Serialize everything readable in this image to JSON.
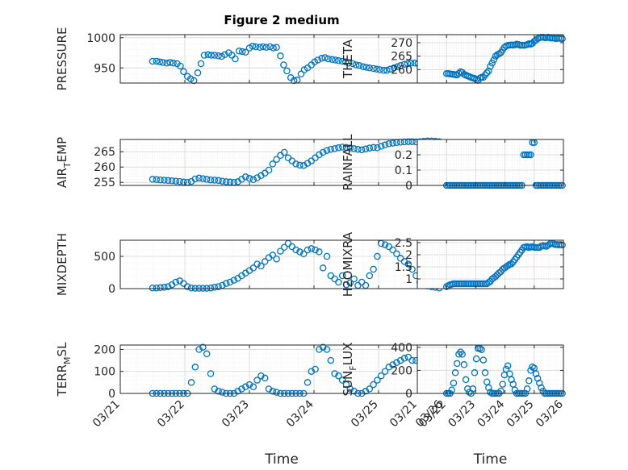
{
  "title": "Figure 2 medium",
  "colors": {
    "marker": "#0072BD",
    "axis": "#262626",
    "grid": "#dcdcdc",
    "minor_grid": "#ebebeb",
    "background": "#ffffff"
  },
  "xaxis": {
    "label": "Time",
    "ticks": [
      0,
      1,
      2,
      3,
      4,
      5
    ],
    "tick_labels": [
      "03/21",
      "03/22",
      "03/23",
      "03/24",
      "03/25",
      "03/26"
    ]
  },
  "chart_data": [
    {
      "type": "scatter",
      "ylabel": "PRESSURE",
      "xlim": [
        0,
        5
      ],
      "ylim": [
        925,
        1005
      ],
      "yticks": [
        950,
        1000
      ],
      "ytick_labels": [
        "950",
        "1000"
      ],
      "title": "Figure 2 medium",
      "x": [
        0.5,
        0.56,
        0.61,
        0.66,
        0.72,
        0.77,
        0.82,
        0.88,
        0.93,
        0.98,
        1.04,
        1.09,
        1.14,
        1.2,
        1.25,
        1.3,
        1.36,
        1.41,
        1.46,
        1.52,
        1.57,
        1.62,
        1.68,
        1.73,
        1.78,
        1.84,
        1.89,
        1.94,
        2.0,
        2.05,
        2.1,
        2.16,
        2.21,
        2.26,
        2.32,
        2.37,
        2.42,
        2.48,
        2.53,
        2.58,
        2.64,
        2.69,
        2.74,
        2.8,
        2.85,
        2.9,
        2.96,
        3.01,
        3.06,
        3.12,
        3.17,
        3.22,
        3.28,
        3.33,
        3.38,
        3.44,
        3.49,
        3.54,
        3.6,
        3.65,
        3.7,
        3.76,
        3.81,
        3.86,
        3.92,
        3.97,
        4.02,
        4.08,
        4.13,
        4.18,
        4.24,
        4.29,
        4.34,
        4.4,
        4.45,
        4.5,
        4.56,
        4.61,
        4.66,
        4.72,
        4.77,
        4.82,
        4.88,
        4.93,
        4.98
      ],
      "y": [
        961,
        961,
        960,
        959,
        958,
        959,
        958,
        957,
        953,
        944,
        936,
        932,
        929,
        942,
        957,
        971,
        972,
        971,
        971,
        970,
        969,
        972,
        975,
        971,
        965,
        978,
        977,
        976,
        983,
        986,
        985,
        984,
        985,
        984,
        985,
        983,
        984,
        970,
        955,
        945,
        934,
        929,
        930,
        940,
        947,
        950,
        955,
        960,
        963,
        966,
        967,
        965,
        964,
        963,
        962,
        961,
        960,
        958,
        957,
        955,
        954,
        952,
        951,
        950,
        949,
        948,
        947,
        946,
        946,
        948,
        950,
        952,
        954,
        956,
        957,
        958,
        958,
        957,
        957,
        958,
        958,
        959,
        959,
        958,
        958
      ]
    },
    {
      "type": "scatter",
      "ylabel": "THETA",
      "xlim": [
        0,
        5
      ],
      "ylim": [
        255,
        273
      ],
      "yticks": [
        260,
        265,
        270
      ],
      "ytick_labels": [
        "260",
        "265",
        "270"
      ],
      "x": [
        1.0,
        1.06,
        1.12,
        1.18,
        1.24,
        1.3,
        1.36,
        1.42,
        1.48,
        1.54,
        1.6,
        1.66,
        1.72,
        1.78,
        1.84,
        1.9,
        1.96,
        2.02,
        2.08,
        2.14,
        2.2,
        2.26,
        2.32,
        2.38,
        2.44,
        2.5,
        2.56,
        2.62,
        2.68,
        2.74,
        2.8,
        2.86,
        2.92,
        2.98,
        3.04,
        3.1,
        3.16,
        3.22,
        3.28,
        3.34,
        3.4,
        3.46,
        3.52,
        3.58,
        3.64,
        3.7,
        3.76,
        3.82,
        3.88,
        3.94,
        4.0,
        4.06,
        4.12,
        4.18,
        4.24,
        4.3,
        4.36,
        4.42,
        4.48,
        4.54,
        4.6,
        4.66,
        4.72,
        4.78,
        4.84,
        4.9,
        4.96
      ],
      "y": [
        258.5,
        258.5,
        258.4,
        258.3,
        258.2,
        258.1,
        258.0,
        258.6,
        259.2,
        258.9,
        258.2,
        257.9,
        257.6,
        257.4,
        257.1,
        256.9,
        256.7,
        256.3,
        256.0,
        256.8,
        257.2,
        257.1,
        258.0,
        258.8,
        259.5,
        261.2,
        262.4,
        263.6,
        265.0,
        265.6,
        265.9,
        266.3,
        267.3,
        268.3,
        268.7,
        269.0,
        269.1,
        269.2,
        269.1,
        269.2,
        269.5,
        269.3,
        269.0,
        269.1,
        269.0,
        269.1,
        269.3,
        269.6,
        269.5,
        269.8,
        270.5,
        271.0,
        271.5,
        271.8,
        272.0,
        272.0,
        271.9,
        271.9,
        272.0,
        271.8,
        271.7,
        271.7,
        271.6,
        271.6,
        271.7,
        271.6,
        271.5
      ]
    },
    {
      "type": "scatter",
      "ylabel": "AIR_TEMP",
      "xlim": [
        0,
        5
      ],
      "ylim": [
        254,
        269
      ],
      "yticks": [
        255,
        260,
        265
      ],
      "ytick_labels": [
        "255",
        "260",
        "265"
      ],
      "x": [
        0.5,
        0.56,
        0.62,
        0.68,
        0.74,
        0.8,
        0.86,
        0.92,
        0.98,
        1.04,
        1.1,
        1.16,
        1.22,
        1.28,
        1.34,
        1.4,
        1.46,
        1.52,
        1.58,
        1.64,
        1.7,
        1.76,
        1.82,
        1.88,
        1.94,
        2.0,
        2.06,
        2.12,
        2.18,
        2.24,
        2.3,
        2.36,
        2.42,
        2.48,
        2.54,
        2.6,
        2.66,
        2.72,
        2.78,
        2.84,
        2.9,
        2.96,
        3.02,
        3.08,
        3.14,
        3.2,
        3.26,
        3.32,
        3.38,
        3.44,
        3.5,
        3.56,
        3.62,
        3.68,
        3.74,
        3.8,
        3.86,
        3.92,
        3.98,
        4.04,
        4.1,
        4.16,
        4.22,
        4.28,
        4.34,
        4.4,
        4.46,
        4.52,
        4.58,
        4.64,
        4.7,
        4.76,
        4.82,
        4.88,
        4.94
      ],
      "y": [
        256.0,
        255.9,
        255.8,
        255.7,
        255.6,
        255.5,
        255.4,
        255.3,
        255.1,
        255.0,
        255.3,
        256.1,
        256.4,
        256.2,
        256.0,
        255.8,
        255.7,
        255.6,
        255.4,
        255.2,
        255.1,
        255.0,
        255.2,
        256.0,
        256.8,
        256.3,
        255.9,
        256.5,
        257.2,
        258.0,
        259.0,
        261.0,
        262.5,
        263.8,
        264.8,
        263.0,
        262.0,
        261.0,
        260.6,
        260.5,
        261.2,
        262.0,
        263.0,
        264.0,
        264.8,
        265.4,
        265.8,
        266.0,
        266.3,
        266.5,
        266.4,
        266.2,
        266.0,
        265.8,
        265.6,
        265.9,
        266.2,
        266.4,
        266.3,
        266.8,
        267.2,
        267.6,
        267.8,
        268.0,
        268.1,
        268.2,
        268.3,
        268.3,
        268.2,
        268.3,
        268.4,
        268.5,
        268.5,
        268.4,
        268.3
      ]
    },
    {
      "type": "scatter",
      "ylabel": "RAINFALL",
      "xlim": [
        0,
        5
      ],
      "ylim": [
        0,
        0.3
      ],
      "yticks": [
        0,
        0.1,
        0.2
      ],
      "ytick_labels": [
        "0",
        "0.1",
        "0.2"
      ],
      "x": [
        1.0,
        1.06,
        1.12,
        1.18,
        1.24,
        1.3,
        1.36,
        1.42,
        1.48,
        1.54,
        1.6,
        1.66,
        1.72,
        1.78,
        1.84,
        1.9,
        1.96,
        2.02,
        2.08,
        2.14,
        2.2,
        2.26,
        2.32,
        2.38,
        2.44,
        2.5,
        2.56,
        2.62,
        2.68,
        2.74,
        2.8,
        2.86,
        2.92,
        2.98,
        3.04,
        3.1,
        3.16,
        3.22,
        3.28,
        3.34,
        3.4,
        3.46,
        3.52,
        3.58,
        3.64,
        3.7,
        3.76,
        3.82,
        3.88,
        3.94,
        4.0,
        4.06,
        4.12,
        4.18,
        4.24,
        4.3,
        4.36,
        4.42,
        4.48,
        4.54,
        4.6,
        4.66,
        4.72,
        4.78,
        4.84,
        4.9,
        4.96
      ],
      "y": [
        0,
        0,
        0,
        0,
        0,
        0,
        0,
        0,
        0,
        0,
        0,
        0,
        0,
        0,
        0,
        0,
        0,
        0,
        0,
        0,
        0,
        0,
        0,
        0,
        0,
        0,
        0,
        0,
        0,
        0,
        0,
        0,
        0,
        0,
        0,
        0,
        0,
        0,
        0,
        0,
        0,
        0,
        0,
        0,
        0.2,
        0.2,
        0.2,
        0.2,
        0.2,
        0.28,
        0.28,
        0,
        0,
        0,
        0,
        0,
        0,
        0,
        0,
        0,
        0,
        0,
        0,
        0,
        0,
        0,
        0
      ]
    },
    {
      "type": "scatter",
      "ylabel": "MIXDEPTH",
      "xlim": [
        0,
        5
      ],
      "ylim": [
        0,
        750
      ],
      "yticks": [
        0,
        500
      ],
      "ytick_labels": [
        "0",
        "500"
      ],
      "x": [
        0.5,
        0.56,
        0.62,
        0.68,
        0.74,
        0.8,
        0.86,
        0.92,
        0.98,
        1.04,
        1.1,
        1.16,
        1.22,
        1.28,
        1.34,
        1.4,
        1.46,
        1.52,
        1.58,
        1.64,
        1.7,
        1.76,
        1.82,
        1.88,
        1.94,
        2.0,
        2.06,
        2.12,
        2.18,
        2.24,
        2.3,
        2.36,
        2.42,
        2.48,
        2.54,
        2.6,
        2.66,
        2.72,
        2.78,
        2.84,
        2.9,
        2.96,
        3.02,
        3.08,
        3.14,
        3.2,
        3.26,
        3.32,
        3.38,
        3.44,
        3.5,
        3.56,
        3.62,
        3.68,
        3.74,
        3.8,
        3.86,
        3.92,
        3.98,
        4.04,
        4.1,
        4.16,
        4.22,
        4.28,
        4.34,
        4.4,
        4.46,
        4.52,
        4.58,
        4.64,
        4.7,
        4.76,
        4.82,
        4.88,
        4.94
      ],
      "y": [
        10,
        10,
        15,
        20,
        30,
        60,
        100,
        120,
        80,
        30,
        10,
        5,
        5,
        5,
        5,
        10,
        20,
        30,
        50,
        80,
        100,
        130,
        160,
        200,
        240,
        280,
        320,
        380,
        350,
        420,
        480,
        520,
        460,
        580,
        640,
        700,
        650,
        600,
        570,
        540,
        600,
        620,
        600,
        570,
        320,
        500,
        200,
        150,
        100,
        200,
        60,
        90,
        150,
        50,
        100,
        50,
        200,
        300,
        500,
        700,
        680,
        650,
        600,
        540,
        470,
        420,
        380,
        300,
        200,
        100,
        50,
        40,
        30,
        20,
        10
      ]
    },
    {
      "type": "scatter",
      "ylabel": "H2OMIXRA",
      "xlim": [
        0,
        5
      ],
      "ylim": [
        0.6,
        2.6
      ],
      "yticks": [
        1,
        1.5,
        2,
        2.5
      ],
      "ytick_labels": [
        "1",
        "1.5",
        "2",
        "2.5"
      ],
      "x": [
        1.0,
        1.06,
        1.12,
        1.18,
        1.24,
        1.3,
        1.36,
        1.42,
        1.48,
        1.54,
        1.6,
        1.66,
        1.72,
        1.78,
        1.84,
        1.9,
        1.96,
        2.02,
        2.08,
        2.14,
        2.2,
        2.26,
        2.32,
        2.38,
        2.44,
        2.5,
        2.56,
        2.62,
        2.68,
        2.74,
        2.8,
        2.86,
        2.92,
        2.98,
        3.04,
        3.1,
        3.16,
        3.22,
        3.28,
        3.34,
        3.4,
        3.46,
        3.52,
        3.58,
        3.64,
        3.7,
        3.76,
        3.82,
        3.88,
        3.94,
        4.0,
        4.06,
        4.12,
        4.18,
        4.24,
        4.3,
        4.36,
        4.42,
        4.48,
        4.54,
        4.6,
        4.66,
        4.72,
        4.78,
        4.84,
        4.9,
        4.96
      ],
      "y": [
        0.68,
        0.72,
        0.76,
        0.78,
        0.8,
        0.8,
        0.8,
        0.8,
        0.8,
        0.8,
        0.8,
        0.8,
        0.8,
        0.8,
        0.8,
        0.8,
        0.8,
        0.8,
        0.8,
        0.8,
        0.8,
        0.8,
        0.8,
        0.8,
        0.85,
        0.9,
        1.0,
        1.05,
        1.1,
        1.18,
        1.25,
        1.3,
        1.4,
        1.45,
        1.5,
        1.55,
        1.6,
        1.62,
        1.7,
        1.8,
        1.9,
        2.0,
        2.1,
        2.2,
        2.3,
        2.32,
        2.33,
        2.3,
        2.32,
        2.33,
        2.31,
        2.3,
        2.3,
        2.3,
        2.35,
        2.38,
        2.36,
        2.35,
        2.4,
        2.45,
        2.48,
        2.45,
        2.42,
        2.42,
        2.41,
        2.42,
        2.4
      ]
    },
    {
      "type": "scatter",
      "ylabel": "TERR_MSL",
      "xlim": [
        0,
        5
      ],
      "ylim": [
        0,
        220
      ],
      "yticks": [
        0,
        100,
        200
      ],
      "ytick_labels": [
        "0",
        "100",
        "200"
      ],
      "x": [
        0.5,
        0.56,
        0.62,
        0.68,
        0.74,
        0.8,
        0.86,
        0.92,
        0.98,
        1.04,
        1.1,
        1.16,
        1.22,
        1.28,
        1.34,
        1.4,
        1.46,
        1.52,
        1.58,
        1.64,
        1.7,
        1.76,
        1.82,
        1.88,
        1.94,
        2.0,
        2.06,
        2.12,
        2.18,
        2.24,
        2.3,
        2.36,
        2.42,
        2.48,
        2.54,
        2.6,
        2.66,
        2.72,
        2.78,
        2.84,
        2.9,
        2.96,
        3.02,
        3.08,
        3.14,
        3.2,
        3.26,
        3.32,
        3.38,
        3.44,
        3.5,
        3.56,
        3.62,
        3.68,
        3.74,
        3.8,
        3.86,
        3.92,
        3.98,
        4.04,
        4.1,
        4.16,
        4.22,
        4.28,
        4.34,
        4.4,
        4.46,
        4.52,
        4.58,
        4.64,
        4.7,
        4.76,
        4.82,
        4.88,
        4.94
      ],
      "y": [
        0,
        0,
        0,
        0,
        0,
        0,
        0,
        0,
        0,
        0,
        50,
        120,
        200,
        210,
        180,
        90,
        20,
        10,
        5,
        0,
        0,
        0,
        10,
        20,
        30,
        40,
        30,
        60,
        80,
        70,
        20,
        10,
        5,
        0,
        0,
        0,
        0,
        0,
        0,
        0,
        50,
        100,
        110,
        200,
        210,
        200,
        150,
        90,
        80,
        60,
        40,
        20,
        10,
        0,
        0,
        10,
        20,
        40,
        60,
        80,
        100,
        120,
        130,
        140,
        150,
        160,
        165,
        150,
        150,
        150,
        150,
        150,
        150,
        150,
        150
      ]
    },
    {
      "type": "scatter",
      "ylabel": "SUN_FLUX",
      "xlim": [
        0,
        5
      ],
      "ylim": [
        0,
        420
      ],
      "yticks": [
        0,
        200,
        400
      ],
      "ytick_labels": [
        "0",
        "200",
        "400"
      ],
      "x": [
        1.0,
        1.06,
        1.12,
        1.18,
        1.24,
        1.3,
        1.36,
        1.42,
        1.48,
        1.54,
        1.6,
        1.66,
        1.72,
        1.78,
        1.84,
        1.9,
        1.96,
        2.02,
        2.08,
        2.14,
        2.2,
        2.26,
        2.32,
        2.38,
        2.44,
        2.5,
        2.56,
        2.62,
        2.68,
        2.74,
        2.8,
        2.86,
        2.92,
        2.98,
        3.04,
        3.1,
        3.16,
        3.22,
        3.28,
        3.34,
        3.4,
        3.46,
        3.52,
        3.58,
        3.64,
        3.7,
        3.76,
        3.82,
        3.88,
        3.94,
        4.0,
        4.06,
        4.12,
        4.18,
        4.24,
        4.3,
        4.36,
        4.42,
        4.48,
        4.54,
        4.6,
        4.66,
        4.72,
        4.78,
        4.84,
        4.9,
        4.96
      ],
      "y": [
        0,
        0,
        0,
        30,
        90,
        180,
        260,
        340,
        360,
        340,
        250,
        120,
        40,
        10,
        0,
        40,
        180,
        300,
        390,
        390,
        380,
        290,
        180,
        100,
        50,
        10,
        0,
        0,
        0,
        0,
        0,
        20,
        80,
        160,
        210,
        240,
        170,
        120,
        80,
        30,
        0,
        0,
        0,
        0,
        0,
        0,
        40,
        110,
        200,
        230,
        220,
        170,
        130,
        90,
        50,
        20,
        0,
        0,
        0,
        0,
        0,
        0,
        0,
        0,
        0,
        0,
        0
      ]
    }
  ]
}
